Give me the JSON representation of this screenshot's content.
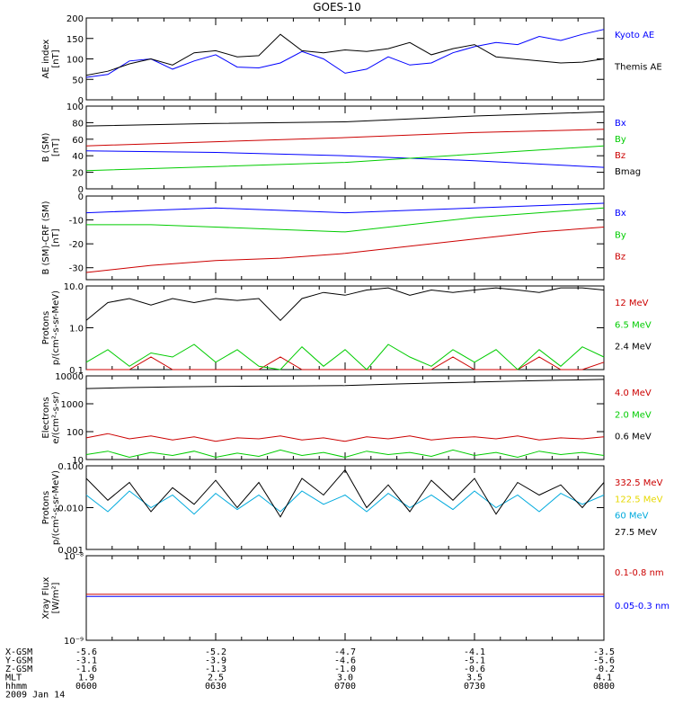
{
  "title": "GOES-10",
  "x_time": {
    "start": "0600",
    "end": "0800"
  },
  "chart_data": [
    {
      "type": "line",
      "ylabel": [
        "AE index",
        "[nT]"
      ],
      "ylim": [
        0,
        200
      ],
      "yticks": [
        0,
        50,
        100,
        150,
        200
      ],
      "ytick_labels": [
        "0",
        "50",
        "100",
        "150",
        "200"
      ],
      "scale": "linear",
      "series": [
        {
          "name": "Kyoto AE",
          "color": "#0000ff",
          "x": [
            0,
            5,
            10,
            15,
            20,
            25,
            30,
            35,
            40,
            45,
            50,
            55,
            60,
            65,
            70,
            75,
            80,
            85,
            90,
            95,
            100,
            105,
            110,
            115,
            120
          ],
          "y": [
            55,
            62,
            95,
            100,
            75,
            95,
            110,
            80,
            78,
            90,
            118,
            100,
            65,
            75,
            105,
            85,
            90,
            115,
            130,
            140,
            135,
            155,
            145,
            160,
            172
          ]
        },
        {
          "name": "Themis AE",
          "color": "#000000",
          "x": [
            0,
            5,
            10,
            15,
            20,
            25,
            30,
            35,
            40,
            45,
            50,
            55,
            60,
            65,
            70,
            75,
            80,
            85,
            90,
            95,
            100,
            105,
            110,
            115,
            120
          ],
          "y": [
            60,
            70,
            88,
            100,
            85,
            115,
            120,
            105,
            108,
            160,
            120,
            115,
            122,
            118,
            125,
            140,
            110,
            125,
            135,
            105,
            100,
            95,
            90,
            92,
            100
          ]
        }
      ]
    },
    {
      "type": "line",
      "ylabel": [
        "B (SM)",
        "[nT]"
      ],
      "ylim": [
        0,
        100
      ],
      "yticks": [
        0,
        20,
        40,
        60,
        80,
        100
      ],
      "ytick_labels": [
        "0",
        "20",
        "40",
        "60",
        "80",
        "100"
      ],
      "scale": "linear",
      "series": [
        {
          "name": "Bx",
          "color": "#0000ff",
          "x": [
            0,
            30,
            60,
            90,
            120
          ],
          "y": [
            46,
            44,
            40,
            34,
            26
          ]
        },
        {
          "name": "By",
          "color": "#00cc00",
          "x": [
            0,
            30,
            60,
            90,
            120
          ],
          "y": [
            22,
            27,
            32,
            42,
            52
          ]
        },
        {
          "name": "Bz",
          "color": "#cc0000",
          "x": [
            0,
            30,
            60,
            90,
            120
          ],
          "y": [
            52,
            57,
            62,
            68,
            72
          ]
        },
        {
          "name": "Bmag",
          "color": "#000000",
          "x": [
            0,
            30,
            60,
            90,
            120
          ],
          "y": [
            76,
            79,
            81,
            88,
            93
          ]
        }
      ]
    },
    {
      "type": "line",
      "ylabel": [
        "B (SM)-CRF (SM)",
        "[nT]"
      ],
      "ylim": [
        -35,
        0
      ],
      "yticks": [
        -30,
        -20,
        -10,
        0
      ],
      "ytick_labels": [
        "-30",
        "-20",
        "-10",
        "0"
      ],
      "scale": "linear",
      "series": [
        {
          "name": "Bx",
          "color": "#0000ff",
          "x": [
            0,
            15,
            30,
            45,
            60,
            75,
            90,
            105,
            120
          ],
          "y": [
            -7,
            -6,
            -5,
            -6,
            -7,
            -6,
            -5,
            -4,
            -3
          ]
        },
        {
          "name": "By",
          "color": "#00cc00",
          "x": [
            0,
            15,
            30,
            45,
            60,
            75,
            90,
            105,
            120
          ],
          "y": [
            -12,
            -12,
            -13,
            -14,
            -15,
            -12,
            -9,
            -7,
            -5
          ]
        },
        {
          "name": "Bz",
          "color": "#cc0000",
          "x": [
            0,
            15,
            30,
            45,
            60,
            75,
            90,
            105,
            120
          ],
          "y": [
            -32,
            -29,
            -27,
            -26,
            -24,
            -21,
            -18,
            -15,
            -13
          ]
        }
      ]
    },
    {
      "type": "line",
      "ylabel": [
        "Protons",
        "p/(cm²-s-sr-MeV)"
      ],
      "ylim": [
        0.1,
        10
      ],
      "yticks": [
        0.1,
        1,
        10
      ],
      "ytick_labels": [
        "0.1",
        "1.0",
        "10.0"
      ],
      "scale": "log",
      "series": [
        {
          "name": "12 MeV",
          "color": "#cc0000",
          "x": [
            0,
            5,
            10,
            15,
            20,
            25,
            30,
            35,
            40,
            45,
            50,
            55,
            60,
            65,
            70,
            75,
            80,
            85,
            90,
            95,
            100,
            105,
            110,
            115,
            120
          ],
          "y": [
            0.1,
            0.1,
            0.1,
            0.2,
            0.1,
            0.1,
            0.1,
            0.1,
            0.1,
            0.2,
            0.1,
            0.1,
            0.1,
            0.1,
            0.1,
            0.1,
            0.1,
            0.2,
            0.1,
            0.1,
            0.1,
            0.2,
            0.1,
            0.1,
            0.15
          ]
        },
        {
          "name": "6.5 MeV",
          "color": "#00cc00",
          "x": [
            0,
            5,
            10,
            15,
            20,
            25,
            30,
            35,
            40,
            45,
            50,
            55,
            60,
            65,
            70,
            75,
            80,
            85,
            90,
            95,
            100,
            105,
            110,
            115,
            120
          ],
          "y": [
            0.15,
            0.3,
            0.12,
            0.25,
            0.2,
            0.4,
            0.15,
            0.3,
            0.12,
            0.1,
            0.35,
            0.12,
            0.3,
            0.1,
            0.4,
            0.2,
            0.12,
            0.3,
            0.15,
            0.3,
            0.1,
            0.3,
            0.12,
            0.35,
            0.2
          ]
        },
        {
          "name": "2.4 MeV",
          "color": "#000000",
          "x": [
            0,
            5,
            10,
            15,
            20,
            25,
            30,
            35,
            40,
            45,
            50,
            55,
            60,
            65,
            70,
            75,
            80,
            85,
            90,
            95,
            100,
            105,
            110,
            115,
            120
          ],
          "y": [
            1.5,
            4,
            5,
            3.5,
            5,
            4,
            5,
            4.5,
            5,
            1.5,
            5,
            7,
            6,
            8,
            9,
            6,
            8,
            7,
            8,
            9,
            8,
            7,
            9,
            9,
            8
          ]
        }
      ]
    },
    {
      "type": "line",
      "ylabel": [
        "Electrons",
        "e/(cm²-s-sr)"
      ],
      "ylim": [
        10,
        10000
      ],
      "yticks": [
        10,
        100,
        1000,
        10000
      ],
      "ytick_labels": [
        "10",
        "100",
        "1000",
        "10000"
      ],
      "scale": "log",
      "series": [
        {
          "name": "4.0 MeV",
          "color": "#cc0000",
          "x": [
            0,
            5,
            10,
            15,
            20,
            25,
            30,
            35,
            40,
            45,
            50,
            55,
            60,
            65,
            70,
            75,
            80,
            85,
            90,
            95,
            100,
            105,
            110,
            115,
            120
          ],
          "y": [
            60,
            85,
            55,
            70,
            50,
            65,
            45,
            60,
            55,
            70,
            50,
            60,
            45,
            65,
            55,
            70,
            50,
            60,
            65,
            55,
            70,
            50,
            60,
            55,
            65
          ]
        },
        {
          "name": "2.0 MeV",
          "color": "#00cc00",
          "x": [
            0,
            5,
            10,
            15,
            20,
            25,
            30,
            35,
            40,
            45,
            50,
            55,
            60,
            65,
            70,
            75,
            80,
            85,
            90,
            95,
            100,
            105,
            110,
            115,
            120
          ],
          "y": [
            15,
            20,
            12,
            18,
            14,
            20,
            12,
            17,
            13,
            22,
            14,
            18,
            12,
            20,
            15,
            18,
            13,
            22,
            14,
            18,
            12,
            20,
            15,
            18,
            14
          ]
        },
        {
          "name": "0.6 MeV",
          "color": "#000000",
          "x": [
            0,
            10,
            20,
            30,
            40,
            50,
            60,
            70,
            80,
            90,
            100,
            110,
            120
          ],
          "y": [
            3500,
            3800,
            4000,
            4200,
            4300,
            4400,
            4500,
            5000,
            5500,
            6000,
            6500,
            7000,
            7500
          ]
        }
      ]
    },
    {
      "type": "line",
      "ylabel": [
        "Protons",
        "p/(cm²-s-sr-MeV)"
      ],
      "ylim": [
        0.001,
        0.1
      ],
      "yticks": [
        0.001,
        0.01,
        0.1
      ],
      "ytick_labels": [
        "0.001",
        "0.010",
        "0.100"
      ],
      "scale": "log",
      "series": [
        {
          "name": "332.5 MeV",
          "color": "#cc0000",
          "x": [],
          "y": []
        },
        {
          "name": "122.5 MeV",
          "color": "#e6d800",
          "x": [],
          "y": []
        },
        {
          "name": "60 MeV",
          "color": "#00aadd",
          "x": [
            0,
            5,
            10,
            15,
            20,
            25,
            30,
            35,
            40,
            45,
            50,
            55,
            60,
            65,
            70,
            75,
            80,
            85,
            90,
            95,
            100,
            105,
            110,
            115,
            120
          ],
          "y": [
            0.02,
            0.008,
            0.025,
            0.01,
            0.02,
            0.007,
            0.022,
            0.009,
            0.02,
            0.008,
            0.025,
            0.012,
            0.02,
            0.008,
            0.022,
            0.01,
            0.02,
            0.009,
            0.025,
            0.01,
            0.02,
            0.008,
            0.022,
            0.012,
            0.02
          ]
        },
        {
          "name": "27.5 MeV",
          "color": "#000000",
          "x": [
            0,
            5,
            10,
            15,
            20,
            25,
            30,
            35,
            40,
            45,
            50,
            55,
            60,
            65,
            70,
            75,
            80,
            85,
            90,
            95,
            100,
            105,
            110,
            115,
            120
          ],
          "y": [
            0.05,
            0.015,
            0.04,
            0.008,
            0.03,
            0.012,
            0.045,
            0.01,
            0.04,
            0.006,
            0.05,
            0.02,
            0.08,
            0.01,
            0.035,
            0.008,
            0.045,
            0.015,
            0.05,
            0.007,
            0.04,
            0.02,
            0.035,
            0.01,
            0.04
          ]
        }
      ]
    },
    {
      "type": "line",
      "ylabel": [
        "Xray Flux",
        "[W/m²]"
      ],
      "ylim": [
        1e-09,
        1e-08
      ],
      "yticks": [
        1e-09,
        1e-08
      ],
      "ytick_labels": [
        "10⁻⁹",
        "10⁻⁸"
      ],
      "scale": "log",
      "series": [
        {
          "name": "0.1-0.8 nm",
          "color": "#cc0000",
          "x": [
            0,
            60,
            120
          ],
          "y": [
            3.5e-09,
            3.5e-09,
            3.5e-09
          ]
        },
        {
          "name": "0.05-0.3 nm",
          "color": "#0000ff",
          "x": [
            0,
            60,
            120
          ],
          "y": [
            3.3e-09,
            3.3e-09,
            3.3e-09
          ]
        }
      ]
    }
  ],
  "legend_labels": [
    [
      "Kyoto AE",
      "Themis AE"
    ],
    [
      "Bx",
      "By",
      "Bz",
      "Bmag"
    ],
    [
      "Bx",
      "By",
      "Bz"
    ],
    [
      "12 MeV",
      "6.5 MeV",
      "2.4 MeV"
    ],
    [
      "4.0 MeV",
      "2.0 MeV",
      "0.6 MeV"
    ],
    [
      "332.5 MeV",
      "122.5 MeV",
      "60 MeV",
      "27.5 MeV"
    ],
    [
      "0.1-0.8 nm",
      "0.05-0.3 nm"
    ]
  ],
  "footer": {
    "row_labels": [
      "X-GSM",
      "Y-GSM",
      "Z-GSM",
      "MLT",
      "hhmm",
      "2009 Jan 14"
    ],
    "columns": [
      {
        "X-GSM": "-5.6",
        "Y-GSM": "-3.1",
        "Z-GSM": "-1.6",
        "MLT": "1.9",
        "hhmm": "0600"
      },
      {
        "X-GSM": "-5.2",
        "Y-GSM": "-3.9",
        "Z-GSM": "-1.3",
        "MLT": "2.5",
        "hhmm": "0630"
      },
      {
        "X-GSM": "-4.7",
        "Y-GSM": "-4.6",
        "Z-GSM": "-1.0",
        "MLT": "3.0",
        "hhmm": "0700"
      },
      {
        "X-GSM": "-4.1",
        "Y-GSM": "-5.1",
        "Z-GSM": "-0.6",
        "MLT": "3.5",
        "hhmm": "0730"
      },
      {
        "X-GSM": "-3.5",
        "Y-GSM": "-5.6",
        "Z-GSM": "-0.2",
        "MLT": "4.1",
        "hhmm": "0800"
      }
    ]
  }
}
